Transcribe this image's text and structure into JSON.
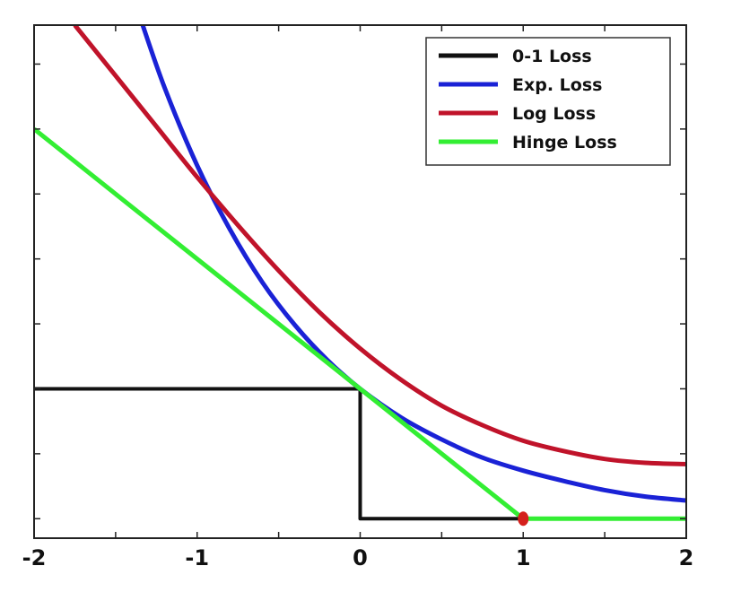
{
  "chart_data": {
    "type": "line",
    "title": "",
    "xlabel": "",
    "ylabel": "",
    "xlim": [
      -2,
      2
    ],
    "ylim": [
      -0.15,
      3.8
    ],
    "x_ticks": [
      -2,
      -1.5,
      -1,
      -0.5,
      0,
      0.5,
      1,
      1.5,
      2
    ],
    "x_tick_labels": [
      {
        "value": -2,
        "label": "-2"
      },
      {
        "value": -1,
        "label": "-1"
      },
      {
        "value": 0,
        "label": "0"
      },
      {
        "value": 1,
        "label": "1"
      },
      {
        "value": 2,
        "label": "2"
      }
    ],
    "y_ticks": [
      0,
      0.5,
      1,
      1.5,
      2,
      2.5,
      3,
      3.5
    ],
    "grid": false,
    "legend": "top-right",
    "series": [
      {
        "name": "0-1 Loss",
        "color": "#111111",
        "x": [
          -2,
          0,
          0,
          1,
          2
        ],
        "y": [
          1,
          1,
          0,
          0,
          0
        ]
      },
      {
        "name": "Exp. Loss",
        "color": "#1a22d6",
        "x": [
          -1.35,
          -1.2,
          -1.0,
          -0.8,
          -0.6,
          -0.4,
          -0.2,
          0,
          0.25,
          0.5,
          0.75,
          1.0,
          1.25,
          1.5,
          1.75,
          2.0
        ],
        "y": [
          3.86,
          3.32,
          2.72,
          2.23,
          1.82,
          1.49,
          1.22,
          1.0,
          0.78,
          0.61,
          0.47,
          0.37,
          0.29,
          0.22,
          0.17,
          0.14
        ]
      },
      {
        "name": "Log Loss",
        "color": "#c0132a",
        "x": [
          -1.75,
          -1.5,
          -1.25,
          -1.0,
          -0.75,
          -0.5,
          -0.25,
          0,
          0.25,
          0.5,
          0.75,
          1.0,
          1.25,
          1.5,
          1.75,
          2.0
        ],
        "y": [
          3.8,
          3.41,
          3.02,
          2.63,
          2.26,
          1.91,
          1.59,
          1.31,
          1.07,
          0.87,
          0.72,
          0.6,
          0.52,
          0.46,
          0.43,
          0.42
        ]
      },
      {
        "name": "Hinge Loss",
        "color": "#33ee33",
        "x": [
          -2,
          1,
          2
        ],
        "y": [
          3,
          0,
          0
        ]
      }
    ],
    "annotations": [
      {
        "type": "point",
        "x": 1,
        "y": 0,
        "color": "#d4201c"
      }
    ]
  }
}
